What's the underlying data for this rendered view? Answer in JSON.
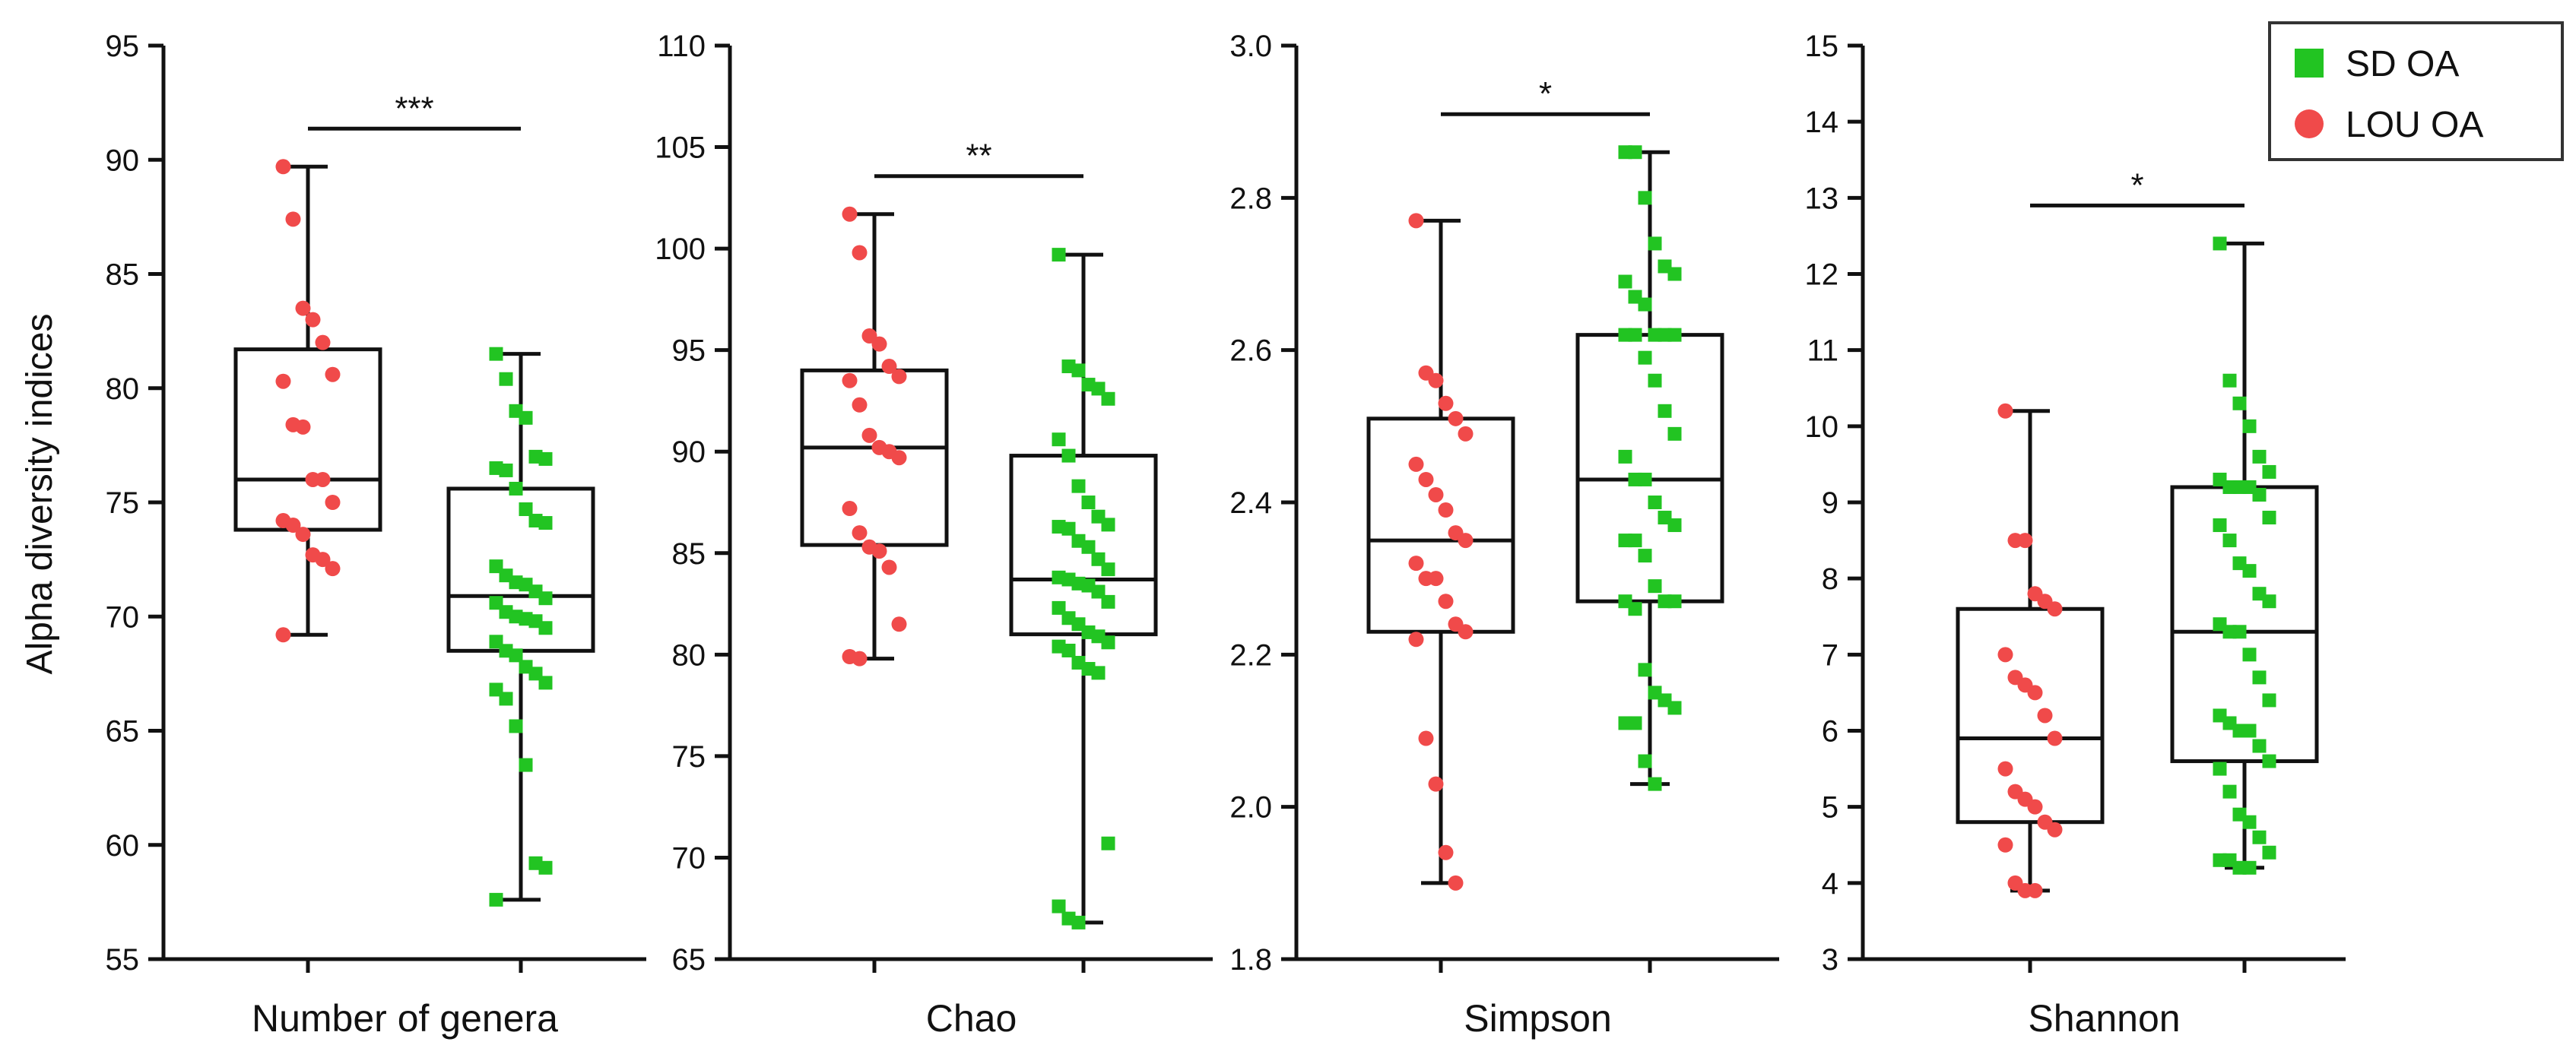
{
  "ylabel": "Alpha diversity indices",
  "colors": {
    "SD OA": "#22c422",
    "LOU OA": "#f04a4a"
  },
  "legend": {
    "position": "top-right",
    "items": [
      {
        "label": "SD OA",
        "marker": "square"
      },
      {
        "label": "LOU OA",
        "marker": "circle"
      }
    ]
  },
  "chart_data": [
    {
      "type": "box",
      "xlabel": "Number of genera",
      "ylim": [
        55,
        95
      ],
      "yticks": [
        55,
        60,
        65,
        70,
        75,
        80,
        85,
        90,
        95
      ],
      "significance": "***",
      "series": [
        {
          "name": "LOU OA",
          "box": {
            "min": 69.2,
            "q1": 73.8,
            "median": 76.0,
            "q3": 81.7,
            "max": 89.7
          },
          "points": [
            89.7,
            87.4,
            83.5,
            83.0,
            82.0,
            80.6,
            80.3,
            78.4,
            78.3,
            76.0,
            76.0,
            75.0,
            74.2,
            74.0,
            73.6,
            72.7,
            72.5,
            72.1,
            69.2
          ]
        },
        {
          "name": "SD OA",
          "box": {
            "min": 57.6,
            "q1": 68.5,
            "median": 70.9,
            "q3": 75.6,
            "max": 81.5
          },
          "points": [
            81.5,
            80.4,
            79.0,
            78.7,
            77.0,
            76.9,
            76.5,
            76.4,
            75.6,
            74.7,
            74.2,
            74.1,
            72.2,
            71.8,
            71.5,
            71.4,
            71.1,
            70.8,
            70.6,
            70.2,
            70.0,
            69.9,
            69.8,
            69.5,
            68.9,
            68.5,
            68.3,
            67.8,
            67.5,
            67.1,
            66.8,
            66.4,
            65.2,
            63.5,
            59.2,
            59.0,
            57.6
          ]
        }
      ]
    },
    {
      "type": "box",
      "xlabel": "Chao",
      "ylim": [
        65,
        110
      ],
      "yticks": [
        65,
        70,
        75,
        80,
        85,
        90,
        95,
        100,
        105,
        110
      ],
      "significance": "**",
      "series": [
        {
          "name": "LOU OA",
          "box": {
            "min": 79.8,
            "q1": 85.4,
            "median": 90.2,
            "q3": 94.0,
            "max": 101.7
          },
          "points": [
            101.7,
            99.8,
            95.7,
            95.3,
            94.2,
            93.7,
            93.5,
            92.3,
            90.8,
            90.2,
            90.0,
            89.7,
            87.2,
            86.0,
            85.3,
            85.1,
            84.3,
            81.5,
            79.9,
            79.8
          ]
        },
        {
          "name": "SD OA",
          "box": {
            "min": 66.8,
            "q1": 81.0,
            "median": 83.7,
            "q3": 89.8,
            "max": 99.7
          },
          "points": [
            99.7,
            94.2,
            94.0,
            93.3,
            93.1,
            92.6,
            90.6,
            89.8,
            88.3,
            87.5,
            86.8,
            86.4,
            86.3,
            86.2,
            85.6,
            85.3,
            84.7,
            84.2,
            83.8,
            83.7,
            83.5,
            83.4,
            83.1,
            82.6,
            82.3,
            81.8,
            81.5,
            81.1,
            80.9,
            80.6,
            80.4,
            80.2,
            79.6,
            79.3,
            79.1,
            70.7,
            67.6,
            67.0,
            66.8
          ]
        }
      ]
    },
    {
      "type": "box",
      "xlabel": "Simpson",
      "ylim": [
        1.8,
        3.0
      ],
      "yticks": [
        "1.8",
        "2.0",
        "2.2",
        "2.4",
        "2.6",
        "2.8",
        "3.0"
      ],
      "significance": "*",
      "series": [
        {
          "name": "LOU OA",
          "box": {
            "min": 1.9,
            "q1": 2.23,
            "median": 2.35,
            "q3": 2.51,
            "max": 2.77
          },
          "points": [
            2.77,
            2.57,
            2.56,
            2.53,
            2.51,
            2.49,
            2.45,
            2.43,
            2.41,
            2.39,
            2.36,
            2.35,
            2.32,
            2.3,
            2.3,
            2.27,
            2.24,
            2.23,
            2.22,
            2.09,
            2.03,
            1.94,
            1.9
          ]
        },
        {
          "name": "SD OA",
          "box": {
            "min": 2.03,
            "q1": 2.27,
            "median": 2.43,
            "q3": 2.62,
            "max": 2.86
          },
          "points": [
            2.86,
            2.86,
            2.8,
            2.74,
            2.71,
            2.7,
            2.69,
            2.67,
            2.66,
            2.62,
            2.62,
            2.62,
            2.62,
            2.62,
            2.59,
            2.56,
            2.52,
            2.49,
            2.46,
            2.43,
            2.43,
            2.4,
            2.38,
            2.37,
            2.35,
            2.35,
            2.33,
            2.29,
            2.27,
            2.27,
            2.27,
            2.26,
            2.18,
            2.15,
            2.14,
            2.13,
            2.11,
            2.11,
            2.06,
            2.03
          ]
        }
      ]
    },
    {
      "type": "box",
      "xlabel": "Shannon",
      "ylim": [
        3,
        15
      ],
      "yticks": [
        3,
        4,
        5,
        6,
        7,
        8,
        9,
        10,
        11,
        12,
        13,
        14,
        15
      ],
      "significance": "*",
      "series": [
        {
          "name": "LOU OA",
          "box": {
            "min": 3.9,
            "q1": 4.8,
            "median": 5.9,
            "q3": 7.6,
            "max": 10.2
          },
          "points": [
            10.2,
            8.5,
            8.5,
            7.8,
            7.7,
            7.6,
            7.0,
            6.7,
            6.6,
            6.5,
            6.2,
            5.9,
            5.5,
            5.2,
            5.1,
            5.0,
            4.8,
            4.7,
            4.5,
            4.0,
            3.9,
            3.9
          ]
        },
        {
          "name": "SD OA",
          "box": {
            "min": 4.2,
            "q1": 5.6,
            "median": 7.3,
            "q3": 9.2,
            "max": 12.4
          },
          "points": [
            12.4,
            10.6,
            10.3,
            10.0,
            9.6,
            9.4,
            9.3,
            9.2,
            9.2,
            9.2,
            9.1,
            8.8,
            8.7,
            8.5,
            8.2,
            8.1,
            7.8,
            7.7,
            7.4,
            7.3,
            7.3,
            7.0,
            6.7,
            6.4,
            6.2,
            6.1,
            6.0,
            6.0,
            5.8,
            5.6,
            5.5,
            5.2,
            4.9,
            4.8,
            4.6,
            4.4,
            4.3,
            4.3,
            4.2,
            4.2
          ]
        }
      ]
    }
  ]
}
